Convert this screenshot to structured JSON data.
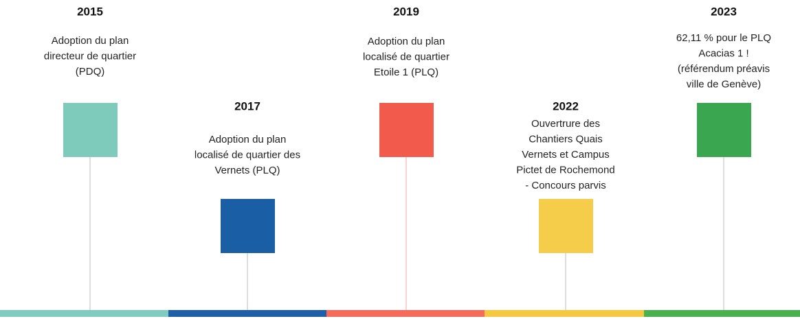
{
  "events": [
    {
      "year": "2015",
      "lines": [
        "Adoption du plan",
        "directeur de quartier",
        "(PDQ)"
      ]
    },
    {
      "year": "2017",
      "lines": [
        "Adoption du plan",
        "localisé de quartier des",
        "Vernets (PLQ)"
      ]
    },
    {
      "year": "2019",
      "lines": [
        "Adoption du plan",
        "localisé de quartier",
        "Etoile 1 (PLQ)"
      ]
    },
    {
      "year": "2022",
      "lines": [
        "Ouvertrure des",
        "Chantiers Quais",
        "Vernets et Campus",
        "Pictet de Rochemond",
        "- Concours parvis"
      ]
    },
    {
      "year": "2023",
      "lines": [
        "62,11 % pour le PLQ",
        "Acacias 1 !",
        "(référendum préavis",
        "ville de Genève)"
      ]
    }
  ]
}
